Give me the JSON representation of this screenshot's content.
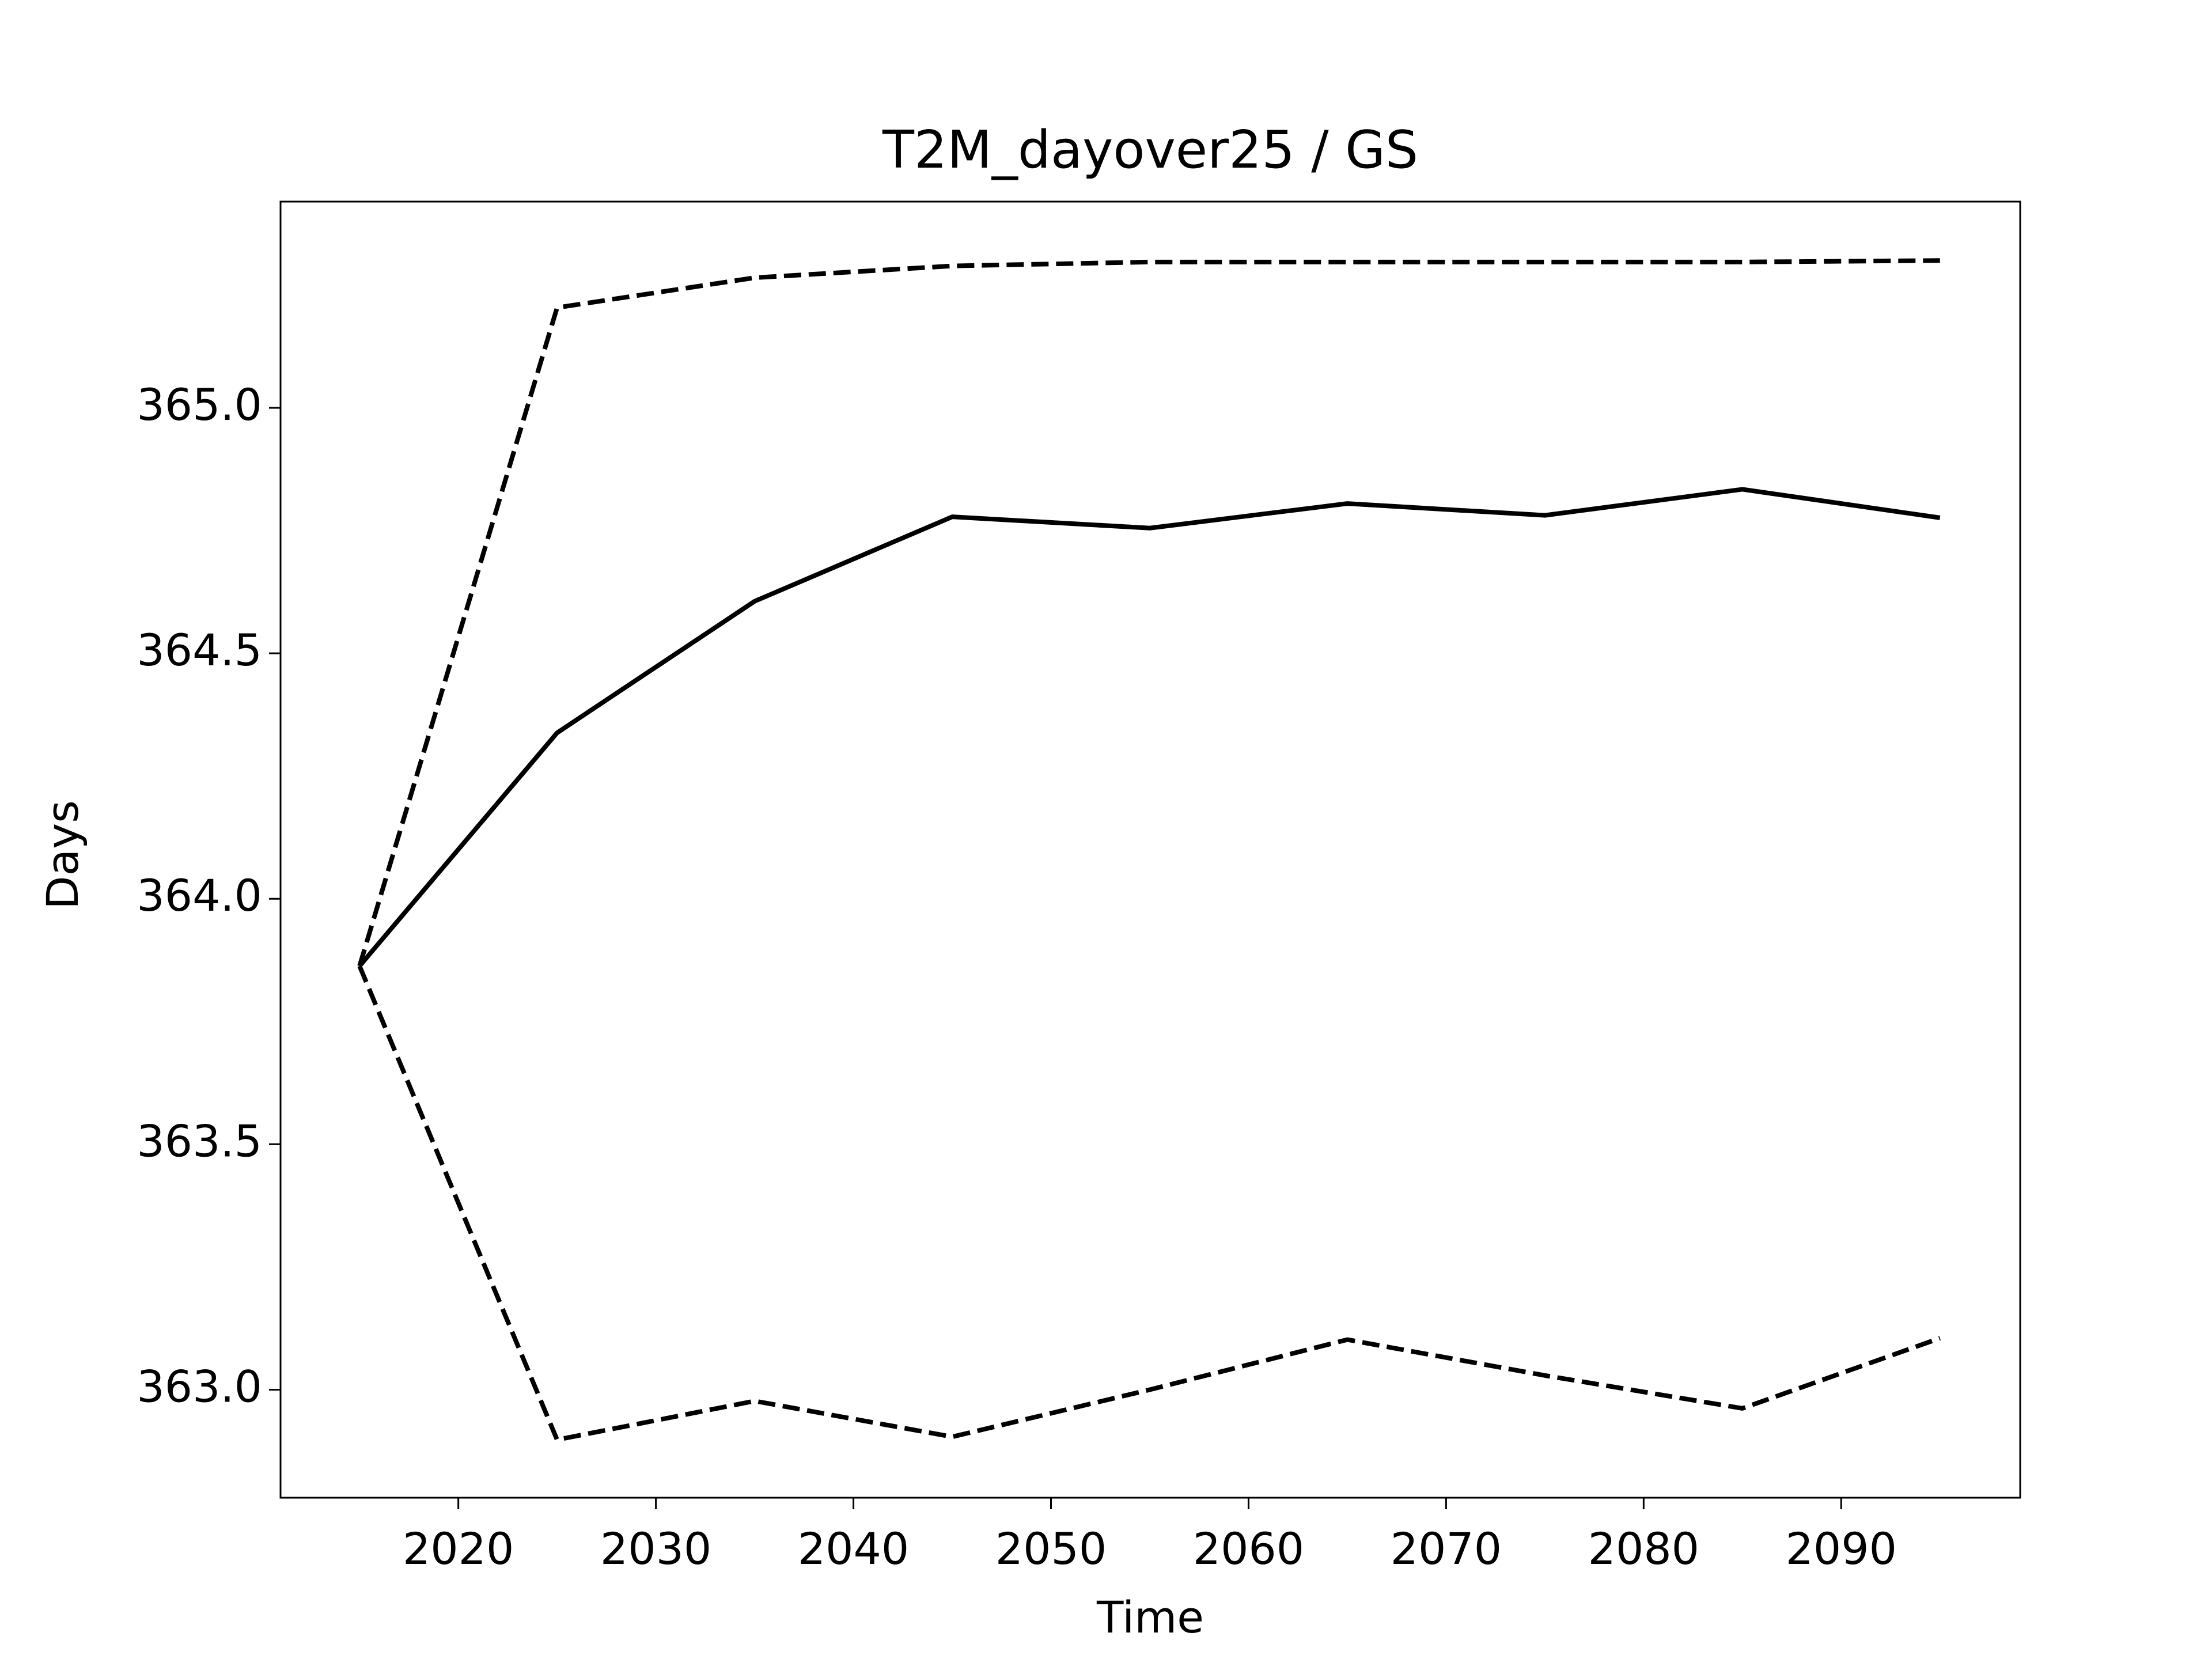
{
  "chart_data": {
    "type": "line",
    "title": "T2M_dayover25 / GS",
    "x_label": "Time",
    "y_label": "Days",
    "x": [
      2015,
      2025,
      2035,
      2045,
      2055,
      2065,
      2075,
      2085,
      2095
    ],
    "series": [
      {
        "color": "#000000",
        "linestyle": "solid",
        "values": [
          363.863,
          364.338,
          364.606,
          364.778,
          364.755,
          364.805,
          364.781,
          364.834,
          364.776
        ]
      },
      {
        "color": "#000000",
        "linestyle": "dashed",
        "values": [
          363.863,
          365.204,
          365.265,
          365.289,
          365.297,
          365.297,
          365.297,
          365.297,
          365.3
        ]
      },
      {
        "color": "#000000",
        "linestyle": "dashed",
        "values": [
          363.863,
          362.898,
          362.977,
          362.904,
          363.0,
          363.102,
          363.029,
          362.962,
          363.105
        ]
      }
    ],
    "xlim": [
      2011,
      2099.06
    ],
    "ylim": [
      362.78,
      365.42
    ],
    "xticks": [
      2020,
      2030,
      2040,
      2050,
      2060,
      2070,
      2080,
      2090
    ],
    "yticks": [
      {
        "value": 363,
        "label": "363.0"
      },
      363.5,
      {
        "value": 364,
        "label": "364.0"
      },
      364.5,
      {
        "value": 365,
        "label": "365.0"
      }
    ],
    "grid": false
  }
}
